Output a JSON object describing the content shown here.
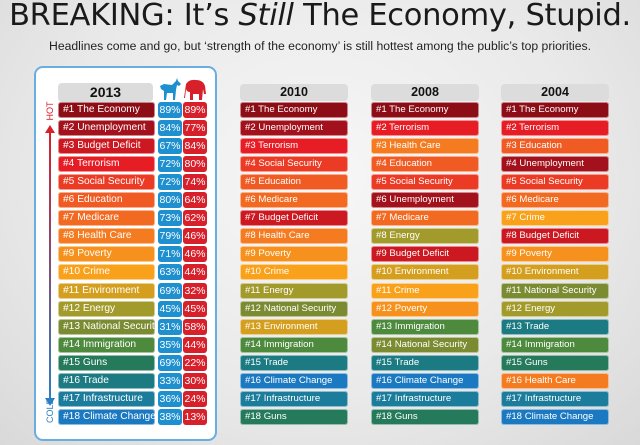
{
  "title": {
    "part1": "BREAKING: It’s ",
    "italic": "Still",
    "part2": " The Economy, Stupid."
  },
  "subtitle": "Headlines come and go, but ‘strength of the economy’ is still hottest among the public’s top priorities.",
  "axis": {
    "hot": "HOT",
    "cold": "COLD"
  },
  "party_icons": {
    "democrat": "donkey-icon",
    "republican": "elephant-icon"
  },
  "colors": {
    "democrat": "#1e8fcf",
    "republican": "#d7202a",
    "topics": {
      "The Economy": "#8c0d16",
      "Unemployment": "#a3121c",
      "Budget Deficit": "#cc1820",
      "Terrorism": "#e71d25",
      "Social Security": "#ec3b25",
      "Education": "#f05a23",
      "Medicare": "#f26a21",
      "Health Care": "#f47b20",
      "Poverty": "#f7911d",
      "Crime": "#f9a11a",
      "Environment": "#d49f1f",
      "Energy": "#a29a2b",
      "National Security": "#7b8b32",
      "Immigration": "#4d8a3d",
      "Guns": "#267a5c",
      "Trade": "#1b7a82",
      "Infrastructure": "#1c7c9c",
      "Climate Change": "#1b79c2"
    }
  },
  "years": [
    {
      "year": "2013",
      "items": [
        {
          "rank": "#1",
          "topic": "The Economy",
          "dem": "89%",
          "rep": "89%"
        },
        {
          "rank": "#2",
          "topic": "Unemployment",
          "dem": "84%",
          "rep": "77%"
        },
        {
          "rank": "#3",
          "topic": "Budget Deficit",
          "dem": "67%",
          "rep": "84%"
        },
        {
          "rank": "#4",
          "topic": "Terrorism",
          "dem": "72%",
          "rep": "80%"
        },
        {
          "rank": "#5",
          "topic": "Social Security",
          "dem": "72%",
          "rep": "74%"
        },
        {
          "rank": "#6",
          "topic": "Education",
          "dem": "80%",
          "rep": "64%"
        },
        {
          "rank": "#7",
          "topic": "Medicare",
          "dem": "73%",
          "rep": "62%"
        },
        {
          "rank": "#8",
          "topic": "Health Care",
          "dem": "79%",
          "rep": "46%"
        },
        {
          "rank": "#9",
          "topic": "Poverty",
          "dem": "71%",
          "rep": "46%"
        },
        {
          "rank": "#10",
          "topic": "Crime",
          "dem": "63%",
          "rep": "44%"
        },
        {
          "rank": "#11",
          "topic": "Environment",
          "dem": "69%",
          "rep": "32%"
        },
        {
          "rank": "#12",
          "topic": "Energy",
          "dem": "45%",
          "rep": "45%"
        },
        {
          "rank": "#13",
          "topic": "National Security",
          "dem": "31%",
          "rep": "58%"
        },
        {
          "rank": "#14",
          "topic": "Immigration",
          "dem": "35%",
          "rep": "44%"
        },
        {
          "rank": "#15",
          "topic": "Guns",
          "dem": "69%",
          "rep": "22%"
        },
        {
          "rank": "#16",
          "topic": "Trade",
          "dem": "33%",
          "rep": "30%"
        },
        {
          "rank": "#17",
          "topic": "Infrastructure",
          "dem": "36%",
          "rep": "24%"
        },
        {
          "rank": "#18",
          "topic": "Climate Change",
          "dem": "38%",
          "rep": "13%"
        }
      ]
    },
    {
      "year": "2010",
      "items": [
        {
          "rank": "#1",
          "topic": "The Economy"
        },
        {
          "rank": "#2",
          "topic": "Unemployment"
        },
        {
          "rank": "#3",
          "topic": "Terrorism"
        },
        {
          "rank": "#4",
          "topic": "Social Security"
        },
        {
          "rank": "#5",
          "topic": "Education"
        },
        {
          "rank": "#6",
          "topic": "Medicare"
        },
        {
          "rank": "#7",
          "topic": "Budget Deficit"
        },
        {
          "rank": "#8",
          "topic": "Health Care"
        },
        {
          "rank": "#9",
          "topic": "Poverty"
        },
        {
          "rank": "#10",
          "topic": "Crime"
        },
        {
          "rank": "#11",
          "topic": "Energy"
        },
        {
          "rank": "#12",
          "topic": "National Security"
        },
        {
          "rank": "#13",
          "topic": "Environment"
        },
        {
          "rank": "#14",
          "topic": "Immigration"
        },
        {
          "rank": "#15",
          "topic": "Trade"
        },
        {
          "rank": "#16",
          "topic": "Climate Change"
        },
        {
          "rank": "#17",
          "topic": "Infrastructure"
        },
        {
          "rank": "#18",
          "topic": "Guns"
        }
      ]
    },
    {
      "year": "2008",
      "items": [
        {
          "rank": "#1",
          "topic": "The Economy"
        },
        {
          "rank": "#2",
          "topic": "Terrorism"
        },
        {
          "rank": "#3",
          "topic": "Health Care"
        },
        {
          "rank": "#4",
          "topic": "Education"
        },
        {
          "rank": "#5",
          "topic": "Social Security"
        },
        {
          "rank": "#6",
          "topic": "Unemployment"
        },
        {
          "rank": "#7",
          "topic": "Medicare"
        },
        {
          "rank": "#8",
          "topic": "Energy"
        },
        {
          "rank": "#9",
          "topic": "Budget Deficit"
        },
        {
          "rank": "#10",
          "topic": "Environment"
        },
        {
          "rank": "#11",
          "topic": "Crime"
        },
        {
          "rank": "#12",
          "topic": "Poverty"
        },
        {
          "rank": "#13",
          "topic": "Immigration"
        },
        {
          "rank": "#14",
          "topic": "National Security"
        },
        {
          "rank": "#15",
          "topic": "Trade"
        },
        {
          "rank": "#16",
          "topic": "Climate Change"
        },
        {
          "rank": "#17",
          "topic": "Infrastructure"
        },
        {
          "rank": "#18",
          "topic": "Guns"
        }
      ]
    },
    {
      "year": "2004",
      "items": [
        {
          "rank": "#1",
          "topic": "The Economy"
        },
        {
          "rank": "#2",
          "topic": "Terrorism"
        },
        {
          "rank": "#3",
          "topic": "Education"
        },
        {
          "rank": "#4",
          "topic": "Unemployment"
        },
        {
          "rank": "#5",
          "topic": "Social Security"
        },
        {
          "rank": "#6",
          "topic": "Medicare"
        },
        {
          "rank": "#7",
          "topic": "Crime"
        },
        {
          "rank": "#8",
          "topic": "Budget Deficit"
        },
        {
          "rank": "#9",
          "topic": "Poverty"
        },
        {
          "rank": "#10",
          "topic": "Environment"
        },
        {
          "rank": "#11",
          "topic": "National Security"
        },
        {
          "rank": "#12",
          "topic": "Energy"
        },
        {
          "rank": "#13",
          "topic": "Trade"
        },
        {
          "rank": "#14",
          "topic": "Immigration"
        },
        {
          "rank": "#15",
          "topic": "Guns"
        },
        {
          "rank": "#16",
          "topic": "Health Care"
        },
        {
          "rank": "#17",
          "topic": "Infrastructure"
        },
        {
          "rank": "#18",
          "topic": "Climate Change"
        }
      ]
    }
  ]
}
